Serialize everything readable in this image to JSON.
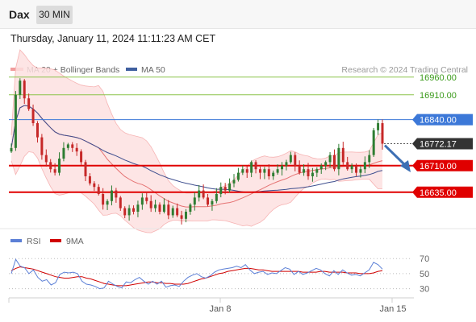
{
  "header": {
    "symbol": "Dax",
    "timeframe": "30 MIN"
  },
  "timestamp": "Thursday, January 11, 2024 11:11:23 AM CET",
  "legend": {
    "bb_label": "MA 20 + Bollinger Bands",
    "ma50_label": "MA 50",
    "credit": "Research © 2024 Trading Central"
  },
  "colors": {
    "up": "#2e7d32",
    "down": "#c62828",
    "resistance": "#8bc34a",
    "support": "#e00000",
    "pivot": "#3c78d8",
    "last": "#333333",
    "bb_fill": "#fde0e0",
    "ma20": "#e57373",
    "ma50": "#3f4f8f",
    "rsi": "#5b7fd6",
    "rsi_ma": "#d00000"
  },
  "rsi_legend": {
    "rsi_label": "RSI",
    "ma_label": "9MA"
  },
  "chart_data": [
    {
      "type": "candlestick",
      "ylim": [
        16530,
        17030
      ],
      "levels": [
        {
          "value": 16960.0,
          "label": "16960.00",
          "kind": "resistance"
        },
        {
          "value": 16910.0,
          "label": "16910.00",
          "kind": "resistance"
        },
        {
          "value": 16840.0,
          "label": "16840.00",
          "kind": "pivot"
        },
        {
          "value": 16772.17,
          "label": "16772.17",
          "kind": "last"
        },
        {
          "value": 16710.0,
          "label": "16710.00",
          "kind": "support"
        },
        {
          "value": 16635.0,
          "label": "16635.00",
          "kind": "support"
        }
      ],
      "x_ticks": [
        "Jan 8",
        "Jan 15"
      ],
      "close": [
        16760,
        16910,
        16950,
        16900,
        16870,
        16830,
        16790,
        16740,
        16720,
        16700,
        16690,
        16730,
        16760,
        16770,
        16760,
        16750,
        16720,
        16680,
        16660,
        16650,
        16630,
        16600,
        16610,
        16640,
        16620,
        16590,
        16570,
        16590,
        16580,
        16600,
        16620,
        16610,
        16590,
        16600,
        16580,
        16600,
        16570,
        16590,
        16570,
        16560,
        16580,
        16600,
        16620,
        16640,
        16620,
        16600,
        16610,
        16630,
        16650,
        16640,
        16660,
        16670,
        16690,
        16700,
        16690,
        16720,
        16700,
        16690,
        16700,
        16680,
        16690,
        16700,
        16710,
        16720,
        16740,
        16710,
        16690,
        16700,
        16680,
        16690,
        16700,
        16710,
        16720,
        16740,
        16700,
        16760,
        16720,
        16700,
        16710,
        16690,
        16700,
        16720,
        16740,
        16810,
        16830,
        16772
      ]
    },
    {
      "type": "line",
      "title": "RSI",
      "ylim": [
        20,
        82
      ],
      "y_ticks": [
        70,
        50,
        30
      ],
      "series": [
        {
          "name": "RSI",
          "values": [
            50,
            69,
            60,
            58,
            50,
            55,
            45,
            40,
            42,
            35,
            38,
            49,
            52,
            51,
            52,
            50,
            40,
            36,
            35,
            33,
            30,
            31,
            40,
            36,
            33,
            31,
            39,
            38,
            42,
            45,
            40,
            36,
            40,
            36,
            40,
            32,
            34,
            35,
            33,
            40,
            45,
            48,
            50,
            46,
            44,
            47,
            52,
            55,
            56,
            57,
            58,
            60,
            58,
            62,
            55,
            50,
            52,
            53,
            49,
            51,
            50,
            54,
            58,
            56,
            49,
            53,
            49,
            51,
            54,
            57,
            55,
            50,
            47,
            54,
            49,
            55,
            51,
            48,
            49,
            47,
            51,
            55,
            65,
            62,
            56
          ]
        },
        {
          "name": "9MA",
          "values": [
            54,
            57,
            59,
            58,
            57,
            56,
            54,
            52,
            50,
            48,
            46,
            45,
            44,
            44,
            45,
            46,
            46,
            44,
            43,
            41,
            39,
            37,
            36,
            35,
            34,
            34,
            34,
            35,
            36,
            37,
            38,
            39,
            39,
            38,
            38,
            37,
            37,
            36,
            36,
            36,
            37,
            39,
            41,
            43,
            44,
            46,
            48,
            50,
            51,
            53,
            54,
            55,
            56,
            57,
            57,
            56,
            55,
            55,
            54,
            53,
            53,
            53,
            53,
            53,
            53,
            53,
            52,
            52,
            52,
            52,
            53,
            53,
            52,
            52,
            52,
            52,
            51,
            51,
            51,
            50,
            50,
            50,
            51,
            53,
            54
          ]
        }
      ]
    }
  ]
}
